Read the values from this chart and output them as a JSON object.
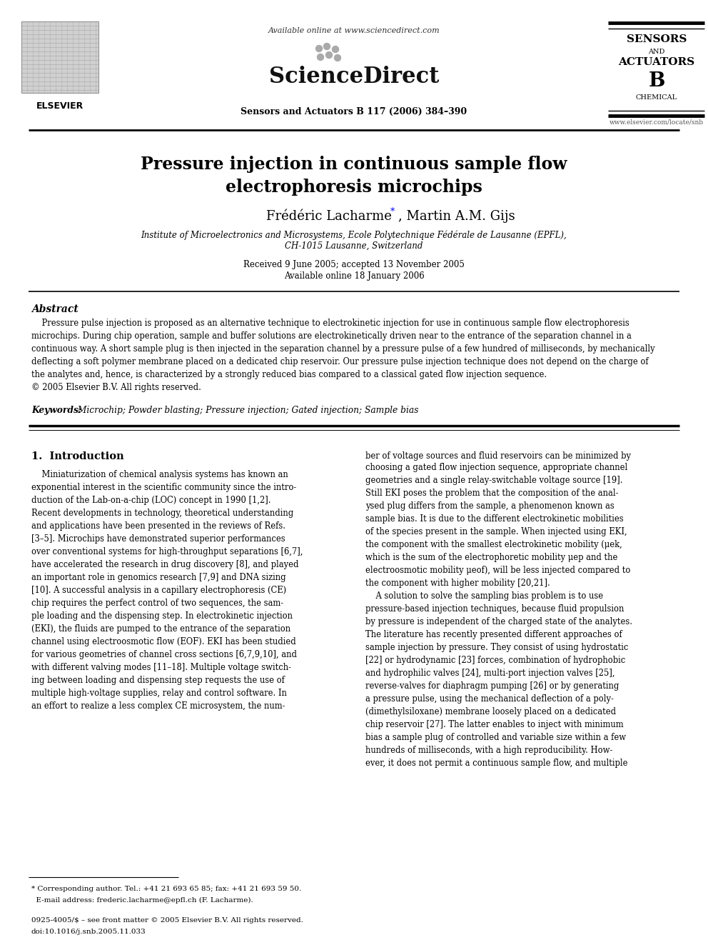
{
  "bg_color": "#ffffff",
  "title_line1": "Pressure injection in continuous sample flow",
  "title_line2": "electrophoresis microchips",
  "authors_left": "Frédéric Lacharme",
  "authors_right": ", Martin A.M. Gijs",
  "affiliation1": "Institute of Microelectronics and Microsystems, Ecole Polytechnique Fédérale de Lausanne (EPFL),",
  "affiliation2": "CH-1015 Lausanne, Switzerland",
  "dates": "Received 9 June 2005; accepted 13 November 2005",
  "available": "Available online 18 January 2006",
  "journal_header": "Sensors and Actuators B 117 (2006) 384–390",
  "available_online": "Available online at www.sciencedirect.com",
  "elsevier_text": "ELSEVIER",
  "website": "www.elsevier.com/locate/snb",
  "abstract_title": "Abstract",
  "keywords_label": "Keywords: ",
  "keywords_text": " Microchip; Powder blasting; Pressure injection; Gated injection; Sample bias",
  "section1_title": "1.  Introduction",
  "footnote_line1": "* Corresponding author. Tel.: +41 21 693 65 85; fax: +41 21 693 59 50.",
  "footnote_line2": "  E-mail address: frederic.lacharme@epfl.ch (F. Lacharme).",
  "footer_line1": "0925-4005/$ – see front matter © 2005 Elsevier B.V. All rights reserved.",
  "footer_line2": "doi:10.1016/j.snb.2005.11.033"
}
